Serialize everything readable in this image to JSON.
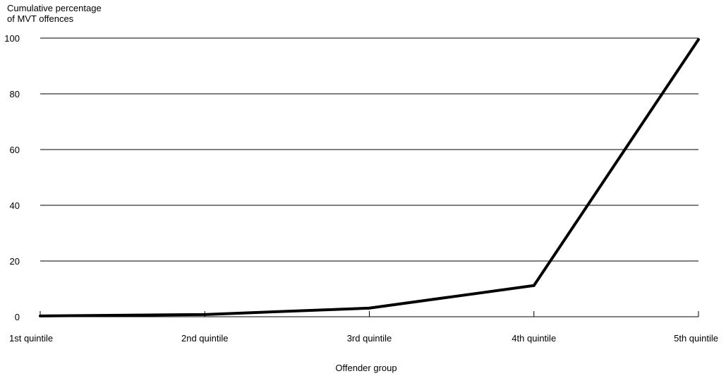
{
  "chart_data": {
    "type": "line",
    "title": "",
    "ylabel_lines": [
      "Cumulative percentage",
      "of MVT offences"
    ],
    "xlabel": "Offender group",
    "categories": [
      "1st quintile",
      "2nd quintile",
      "3rd quintile",
      "4th quintile",
      "5th quintile"
    ],
    "series": [
      {
        "values": [
          0.3,
          0.8,
          3.1,
          11.2,
          99.5
        ]
      }
    ],
    "ylim": [
      0,
      100
    ],
    "yticks": [
      0,
      20,
      40,
      60,
      80,
      100
    ],
    "grid": true,
    "legend": "none",
    "line_color": "#000000"
  }
}
